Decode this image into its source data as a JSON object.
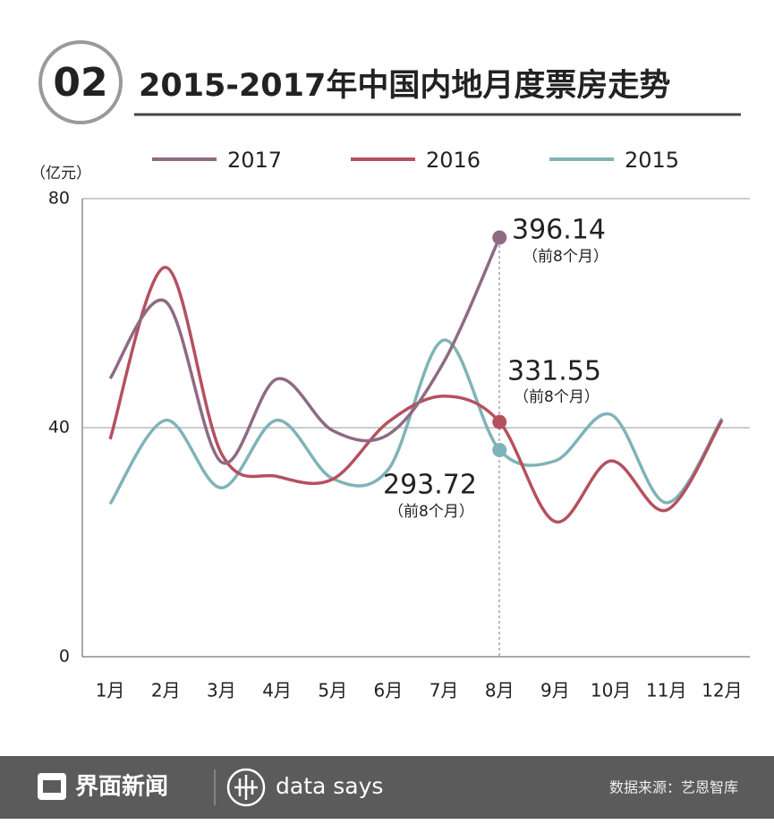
{
  "badge": "02",
  "chart_data": {
    "type": "line",
    "title": "2015-2017年中国内地月度票房走势",
    "y_label": "（亿元）",
    "categories": [
      "1月",
      "2月",
      "3月",
      "4月",
      "5月",
      "6月",
      "7月",
      "8月",
      "9月",
      "10月",
      "11月",
      "12月"
    ],
    "series": [
      {
        "name": "2017",
        "color": "#8e6b82",
        "values": [
          48.6,
          62,
          34,
          48.5,
          39.5,
          38.8,
          51.5,
          73.2,
          null,
          null,
          null,
          null
        ]
      },
      {
        "name": "2016",
        "color": "#b5505f",
        "values": [
          38,
          68,
          35.5,
          31.5,
          31,
          41,
          45.5,
          41,
          23.6,
          34.2,
          25.6,
          41.3
        ]
      },
      {
        "name": "2015",
        "color": "#7fb3b8",
        "values": [
          26.7,
          41.3,
          29.5,
          41.3,
          31.1,
          32.7,
          55.3,
          36.1,
          34.2,
          42.3,
          26.9,
          41.6
        ]
      }
    ],
    "ylim": [
      0,
      80
    ],
    "yticks": [
      0,
      40,
      80
    ],
    "grid": true,
    "annotations": [
      {
        "text": "396.14",
        "sub": "（前8个月）"
      },
      {
        "text": "331.55",
        "sub": "（前8个月）"
      },
      {
        "text": "293.72",
        "sub": "（前8个月）"
      }
    ]
  },
  "footer": {
    "brand": "界面新闻",
    "partner": "data says",
    "source": "数据来源：艺恩智库"
  }
}
